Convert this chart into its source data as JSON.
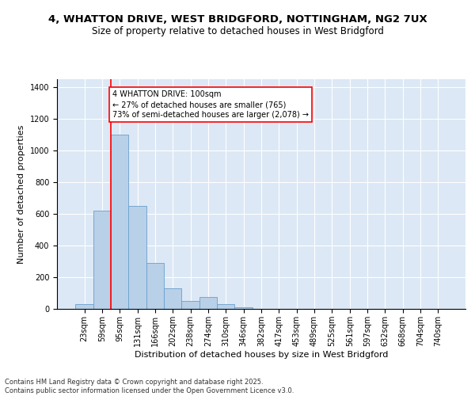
{
  "title_line1": "4, WHATTON DRIVE, WEST BRIDGFORD, NOTTINGHAM, NG2 7UX",
  "title_line2": "Size of property relative to detached houses in West Bridgford",
  "xlabel": "Distribution of detached houses by size in West Bridgford",
  "ylabel": "Number of detached properties",
  "categories": [
    "23sqm",
    "59sqm",
    "95sqm",
    "131sqm",
    "166sqm",
    "202sqm",
    "238sqm",
    "274sqm",
    "310sqm",
    "346sqm",
    "382sqm",
    "417sqm",
    "453sqm",
    "489sqm",
    "525sqm",
    "561sqm",
    "597sqm",
    "632sqm",
    "668sqm",
    "704sqm",
    "740sqm"
  ],
  "values": [
    30,
    620,
    1100,
    650,
    290,
    130,
    50,
    75,
    30,
    8,
    0,
    0,
    0,
    0,
    0,
    0,
    0,
    0,
    0,
    0,
    0
  ],
  "bar_color": "#b8d0e8",
  "bar_edge_color": "#6aa0cc",
  "vline_color": "red",
  "annotation_text": "4 WHATTON DRIVE: 100sqm\n← 27% of detached houses are smaller (765)\n73% of semi-detached houses are larger (2,078) →",
  "annotation_box_color": "white",
  "annotation_box_edge_color": "red",
  "ylim": [
    0,
    1450
  ],
  "yticks": [
    0,
    200,
    400,
    600,
    800,
    1000,
    1200,
    1400
  ],
  "background_color": "#dce8f5",
  "grid_color": "white",
  "footer_text": "Contains HM Land Registry data © Crown copyright and database right 2025.\nContains public sector information licensed under the Open Government Licence v3.0.",
  "title_fontsize": 9.5,
  "subtitle_fontsize": 8.5,
  "axis_label_fontsize": 8,
  "tick_fontsize": 7,
  "annotation_fontsize": 7,
  "footer_fontsize": 6
}
